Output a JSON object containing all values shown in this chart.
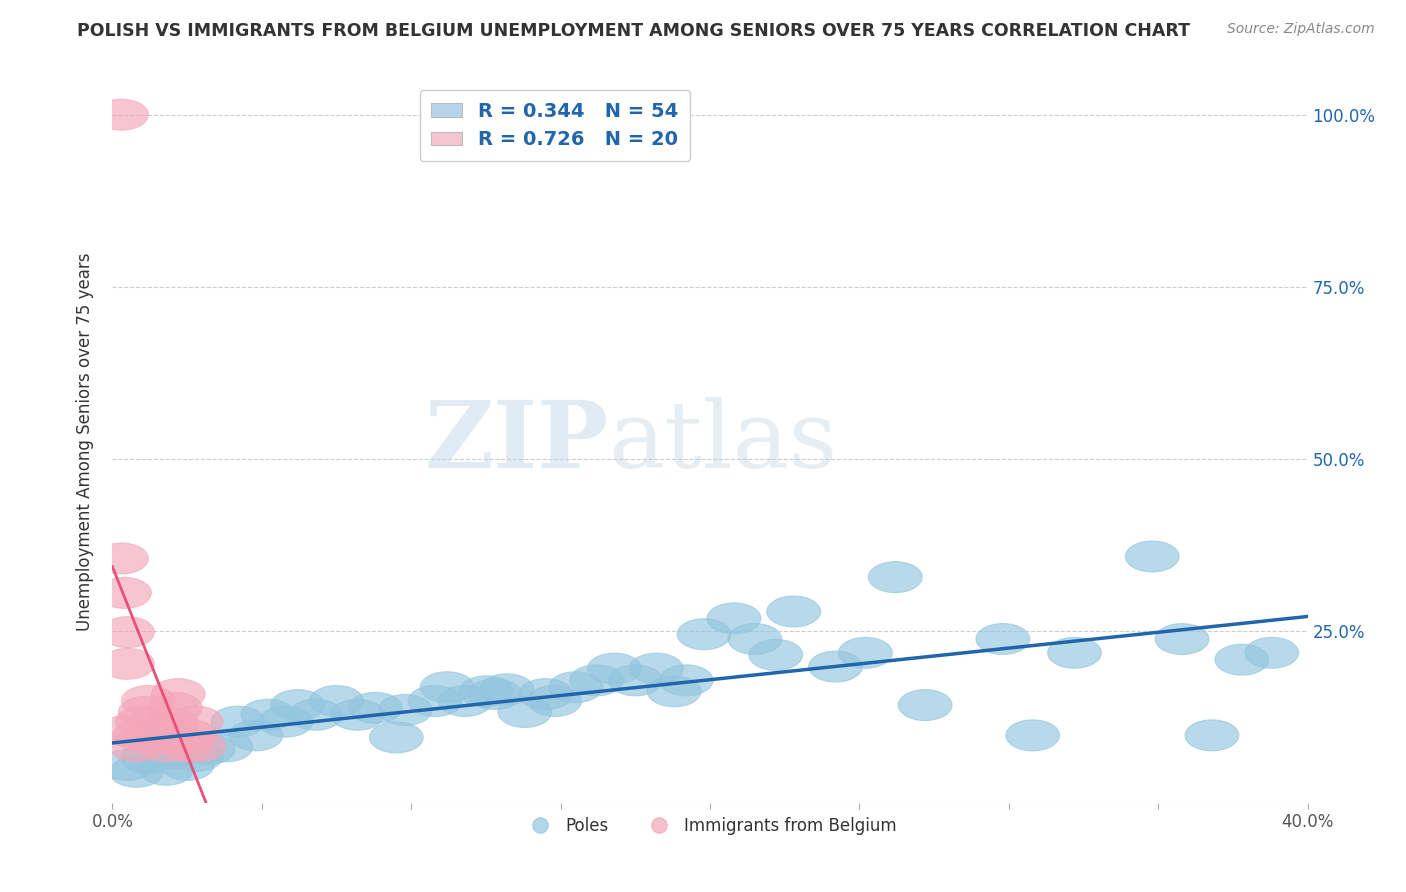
{
  "title": "POLISH VS IMMIGRANTS FROM BELGIUM UNEMPLOYMENT AMONG SENIORS OVER 75 YEARS CORRELATION CHART",
  "source": "Source: ZipAtlas.com",
  "ylabel": "Unemployment Among Seniors over 75 years",
  "xlim": [
    0.0,
    0.4
  ],
  "ylim": [
    0.0,
    1.05
  ],
  "x_ticks": [
    0.0,
    0.05,
    0.1,
    0.15,
    0.2,
    0.25,
    0.3,
    0.35,
    0.4
  ],
  "x_tick_labels": [
    "0.0%",
    "",
    "",
    "",
    "",
    "",
    "",
    "",
    "40.0%"
  ],
  "y_ticks": [
    0.0,
    0.25,
    0.5,
    0.75,
    1.0
  ],
  "y_tick_labels_right": [
    "",
    "25.0%",
    "50.0%",
    "75.0%",
    "100.0%"
  ],
  "poles_color": "#92c5de",
  "poles_face_alpha": 0.55,
  "belgium_color": "#f4a6b8",
  "belgium_face_alpha": 0.55,
  "trend_poles_color": "#2166ac",
  "trend_belgium_color": "#e8507a",
  "legend_box_color_poles": "#b8d4ea",
  "legend_box_color_belgium": "#f5c6d2",
  "R_poles": 0.344,
  "N_poles": 54,
  "R_belgium": 0.726,
  "N_belgium": 20,
  "poles_x": [
    0.005,
    0.008,
    0.012,
    0.018,
    0.02,
    0.022,
    0.025,
    0.028,
    0.032,
    0.038,
    0.042,
    0.048,
    0.052,
    0.058,
    0.062,
    0.068,
    0.075,
    0.082,
    0.088,
    0.095,
    0.098,
    0.108,
    0.112,
    0.118,
    0.125,
    0.128,
    0.132,
    0.138,
    0.145,
    0.148,
    0.155,
    0.162,
    0.168,
    0.175,
    0.182,
    0.188,
    0.192,
    0.198,
    0.208,
    0.215,
    0.222,
    0.228,
    0.242,
    0.252,
    0.262,
    0.272,
    0.298,
    0.308,
    0.322,
    0.348,
    0.358,
    0.368,
    0.378,
    0.388
  ],
  "poles_y": [
    0.055,
    0.045,
    0.065,
    0.048,
    0.072,
    0.085,
    0.055,
    0.068,
    0.078,
    0.082,
    0.118,
    0.098,
    0.128,
    0.118,
    0.142,
    0.128,
    0.148,
    0.128,
    0.138,
    0.095,
    0.135,
    0.148,
    0.168,
    0.148,
    0.162,
    0.158,
    0.165,
    0.132,
    0.158,
    0.148,
    0.168,
    0.178,
    0.195,
    0.178,
    0.195,
    0.162,
    0.178,
    0.245,
    0.268,
    0.238,
    0.215,
    0.278,
    0.198,
    0.218,
    0.328,
    0.142,
    0.238,
    0.098,
    0.218,
    0.358,
    0.238,
    0.098,
    0.208,
    0.218
  ],
  "belgium_x": [
    0.003,
    0.003,
    0.004,
    0.005,
    0.005,
    0.005,
    0.008,
    0.009,
    0.01,
    0.011,
    0.012,
    0.018,
    0.019,
    0.02,
    0.021,
    0.022,
    0.025,
    0.026,
    0.028,
    0.029
  ],
  "belgium_y": [
    1.0,
    0.355,
    0.305,
    0.248,
    0.202,
    0.105,
    0.082,
    0.098,
    0.118,
    0.132,
    0.148,
    0.082,
    0.095,
    0.115,
    0.138,
    0.158,
    0.082,
    0.098,
    0.118,
    0.082
  ],
  "watermark_zip": "ZIP",
  "watermark_atlas": "atlas",
  "background_color": "#ffffff",
  "grid_color": "#cccccc"
}
